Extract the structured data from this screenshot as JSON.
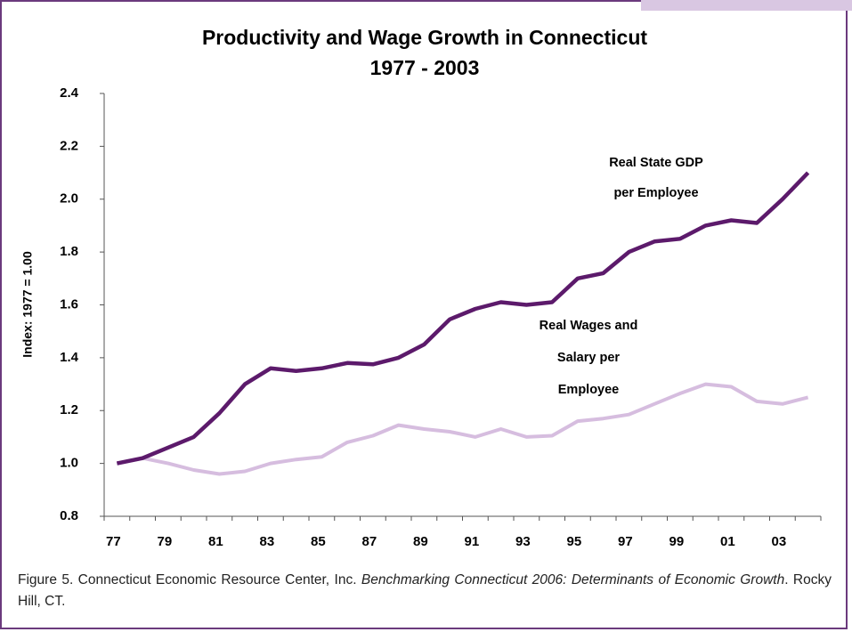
{
  "chart_data": {
    "type": "line",
    "title": [
      "Productivity and Wage Growth in Connecticut",
      "1977 - 2003"
    ],
    "y_label": "Index: 1977 = 1.00",
    "categories": [
      "77",
      null,
      "79",
      null,
      "81",
      null,
      "83",
      null,
      "85",
      null,
      "87",
      null,
      "89",
      null,
      "91",
      null,
      "93",
      null,
      "95",
      null,
      "97",
      null,
      "99",
      null,
      "01",
      null,
      "03",
      null
    ],
    "series": [
      {
        "color": "#5c1a6b",
        "values": [
          1.0,
          1.02,
          1.06,
          1.1,
          1.19,
          1.3,
          1.36,
          1.35,
          1.36,
          1.38,
          1.375,
          1.4,
          1.45,
          1.545,
          1.585,
          1.61,
          1.6,
          1.61,
          1.7,
          1.72,
          1.8,
          1.84,
          1.85,
          1.9,
          1.92,
          1.91,
          2.0,
          2.1
        ]
      },
      {
        "color": "#d6bddf",
        "values": [
          1.0,
          1.02,
          1.0,
          0.975,
          0.96,
          0.97,
          1.0,
          1.015,
          1.025,
          1.08,
          1.105,
          1.145,
          1.13,
          1.12,
          1.1,
          1.13,
          1.1,
          1.105,
          1.16,
          1.17,
          1.185,
          1.225,
          1.265,
          1.3,
          1.29,
          1.235,
          1.225,
          1.25
        ]
      }
    ],
    "annotations": [
      {
        "text": [
          "Real State GDP",
          "per Employee"
        ]
      },
      {
        "text": [
          "Real Wages and",
          "Salary per",
          "Employee"
        ]
      }
    ],
    "ylim": [
      0.8,
      2.4
    ],
    "yticks": [
      0.8,
      {
        "value": 1,
        "label": "1.0"
      },
      1.2,
      1.4,
      1.6,
      1.8,
      {
        "value": 2,
        "label": "2.0"
      },
      2.2,
      2.4
    ],
    "grid": false
  },
  "caption": {
    "parts": [
      "Figure 5. Connecticut Economic Resource Center, Inc. ",
      "Benchmarking Connecticut 2006: Determinants of Economic Growth",
      ". Rocky Hill, CT."
    ]
  }
}
